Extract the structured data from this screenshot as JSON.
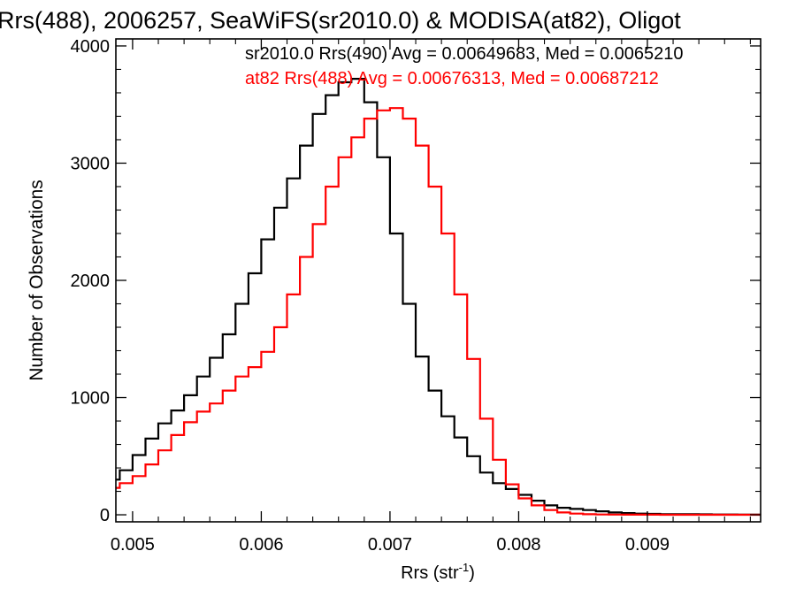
{
  "chart_data": {
    "type": "line",
    "title": "Rrs(488), 2006257, SeaWiFS(sr2010.0) & MODISA(at82), Oligot",
    "xlabel": "Rrs (str",
    "xlabel_sup": "-1",
    "xlabel_end": ")",
    "ylabel": "Number of Observations",
    "xlim": [
      0.00487,
      0.00988
    ],
    "ylim": [
      -60,
      4060
    ],
    "x_ticks": [
      0.005,
      0.006,
      0.007,
      0.008,
      0.009
    ],
    "x_tick_labels": [
      "0.005",
      "0.006",
      "0.007",
      "0.008",
      "0.009"
    ],
    "y_ticks": [
      0,
      1000,
      2000,
      3000,
      4000
    ],
    "y_tick_labels": [
      "0",
      "1000",
      "2000",
      "3000",
      "4000"
    ],
    "grid": false,
    "series": [
      {
        "name": "sr2010.0",
        "color": "#000000",
        "legend_text": "sr2010.0 Rrs(490) Avg = 0.00649683, Med = 0.0065210",
        "x": [
          0.00487,
          0.0049,
          0.005,
          0.0051,
          0.0052,
          0.0053,
          0.0054,
          0.0055,
          0.0056,
          0.0057,
          0.0058,
          0.0059,
          0.006,
          0.0061,
          0.0062,
          0.0063,
          0.0064,
          0.0065,
          0.0066,
          0.0067,
          0.0068,
          0.0069,
          0.007,
          0.0071,
          0.0072,
          0.0073,
          0.0074,
          0.0075,
          0.0076,
          0.0077,
          0.0078,
          0.0079,
          0.008,
          0.0081,
          0.0082,
          0.0083,
          0.0084,
          0.0085,
          0.0086,
          0.0087,
          0.0088,
          0.0089,
          0.009,
          0.0091,
          0.0092,
          0.0093,
          0.0094,
          0.0095,
          0.0096,
          0.0097,
          0.0098,
          0.00988
        ],
        "y": [
          300,
          380,
          510,
          650,
          780,
          890,
          1020,
          1180,
          1340,
          1540,
          1800,
          2060,
          2350,
          2620,
          2870,
          3150,
          3420,
          3580,
          3690,
          3720,
          3520,
          3050,
          2400,
          1800,
          1350,
          1060,
          840,
          660,
          500,
          360,
          270,
          220,
          170,
          120,
          80,
          60,
          50,
          40,
          30,
          20,
          15,
          10,
          8,
          5,
          5,
          5,
          4,
          3,
          3,
          2,
          2,
          2
        ]
      },
      {
        "name": "at82",
        "color": "#ff0000",
        "legend_text": "at82 Rrs(488) Avg = 0.00676313, Med = 0.00687212",
        "x": [
          0.00487,
          0.0049,
          0.005,
          0.0051,
          0.0052,
          0.0053,
          0.0054,
          0.0055,
          0.0056,
          0.0057,
          0.0058,
          0.0059,
          0.006,
          0.0061,
          0.0062,
          0.0063,
          0.0064,
          0.0065,
          0.0066,
          0.0067,
          0.0068,
          0.0069,
          0.007,
          0.0071,
          0.0072,
          0.0073,
          0.0074,
          0.0075,
          0.0076,
          0.0077,
          0.0078,
          0.0079,
          0.008,
          0.0081,
          0.0082,
          0.0083,
          0.0084,
          0.0085,
          0.0086,
          0.0087,
          0.0088,
          0.0089,
          0.009,
          0.0091,
          0.0092,
          0.0093,
          0.0094,
          0.0095,
          0.0096,
          0.0097,
          0.0098,
          0.00988
        ],
        "y": [
          230,
          270,
          330,
          430,
          550,
          680,
          790,
          880,
          950,
          1060,
          1180,
          1260,
          1390,
          1600,
          1880,
          2200,
          2480,
          2800,
          3050,
          3220,
          3380,
          3450,
          3470,
          3380,
          3150,
          2800,
          2400,
          1880,
          1330,
          820,
          470,
          260,
          140,
          80,
          40,
          20,
          10,
          5,
          3,
          2,
          1,
          1,
          1,
          0,
          0,
          0,
          0,
          0,
          0,
          0,
          0,
          0
        ]
      }
    ]
  }
}
